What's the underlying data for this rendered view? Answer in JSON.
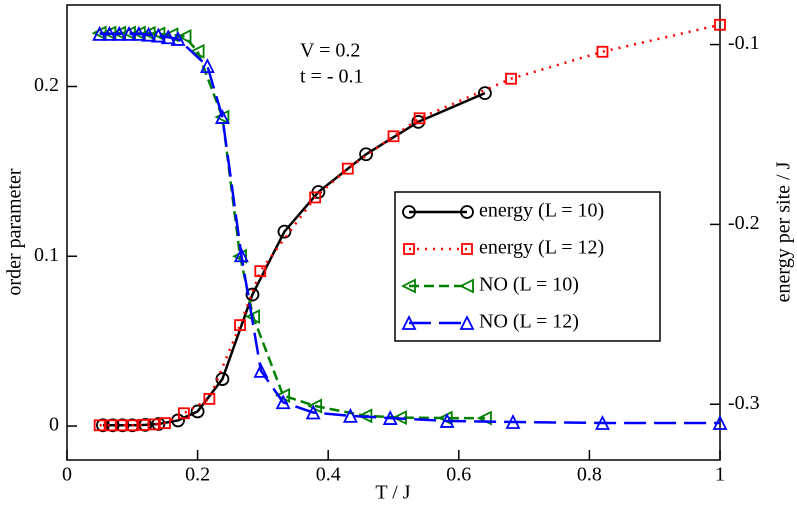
{
  "chart_data": {
    "type": "line",
    "xlabel": "T / J",
    "ylabel": "order parameter",
    "y2label": "energy per site / J",
    "annotations": [
      "V = 0.2",
      "t = - 0.1"
    ],
    "xlim": [
      0,
      1
    ],
    "xticks": [
      0,
      0.2,
      0.4,
      0.6,
      0.8,
      1
    ],
    "ylim": [
      -0.02,
      0.248
    ],
    "yticks": [
      0,
      0.1,
      0.2
    ],
    "y2lim": [
      -0.331,
      -0.078
    ],
    "y2ticks": [
      -0.1,
      -0.2,
      -0.3
    ],
    "legend": "center-right",
    "series": [
      {
        "name": "energy (L = 10)",
        "color": "#000000",
        "axis": "y2",
        "dash": "solid",
        "marker": "circle",
        "x": [
          0.055,
          0.07,
          0.085,
          0.1,
          0.12,
          0.14,
          0.17,
          0.2,
          0.238,
          0.284,
          0.333,
          0.385,
          0.458,
          0.538,
          0.64
        ],
        "values": [
          -0.3117,
          -0.3117,
          -0.3117,
          -0.3117,
          -0.3115,
          -0.311,
          -0.309,
          -0.304,
          -0.286,
          -0.239,
          -0.204,
          -0.182,
          -0.161,
          -0.143,
          -0.127
        ]
      },
      {
        "name": "energy (L = 12)",
        "color": "#ff0000",
        "axis": "y2",
        "dash": "dotted",
        "marker": "square",
        "x": [
          0.05,
          0.067,
          0.083,
          0.1,
          0.117,
          0.133,
          0.15,
          0.179,
          0.218,
          0.265,
          0.296,
          0.38,
          0.43,
          0.5,
          0.54,
          0.68,
          0.82,
          1.0
        ],
        "values": [
          -0.3117,
          -0.3117,
          -0.3117,
          -0.3117,
          -0.3115,
          -0.3112,
          -0.3105,
          -0.305,
          -0.297,
          -0.256,
          -0.226,
          -0.185,
          -0.169,
          -0.151,
          -0.141,
          -0.119,
          -0.104,
          -0.089
        ]
      },
      {
        "name": "NO (L = 10)",
        "color": "#008000",
        "axis": "y",
        "dash": "dashed",
        "marker": "triangle-left",
        "x": [
          0.05,
          0.065,
          0.08,
          0.095,
          0.11,
          0.125,
          0.14,
          0.16,
          0.18,
          0.2,
          0.238,
          0.265,
          0.285,
          0.331,
          0.38,
          0.457,
          0.51,
          0.58,
          0.64
        ],
        "values": [
          0.2315,
          0.2315,
          0.2315,
          0.2315,
          0.2315,
          0.2313,
          0.231,
          0.2305,
          0.2295,
          0.2207,
          0.182,
          0.1,
          0.0645,
          0.018,
          0.0118,
          0.006,
          0.005,
          0.0047,
          0.0047
        ]
      },
      {
        "name": "NO (L = 12)",
        "color": "#0000ff",
        "axis": "y",
        "dash": "longdash",
        "marker": "triangle-up",
        "x": [
          0.05,
          0.065,
          0.08,
          0.095,
          0.11,
          0.125,
          0.14,
          0.155,
          0.17,
          0.215,
          0.238,
          0.267,
          0.297,
          0.331,
          0.377,
          0.434,
          0.495,
          0.582,
          0.683,
          0.82,
          1.0
        ],
        "values": [
          0.231,
          0.231,
          0.231,
          0.231,
          0.231,
          0.2305,
          0.23,
          0.229,
          0.228,
          0.212,
          0.182,
          0.1006,
          0.0325,
          0.014,
          0.008,
          0.006,
          0.0047,
          0.003,
          0.0024,
          0.0018,
          0.0018
        ]
      }
    ]
  }
}
